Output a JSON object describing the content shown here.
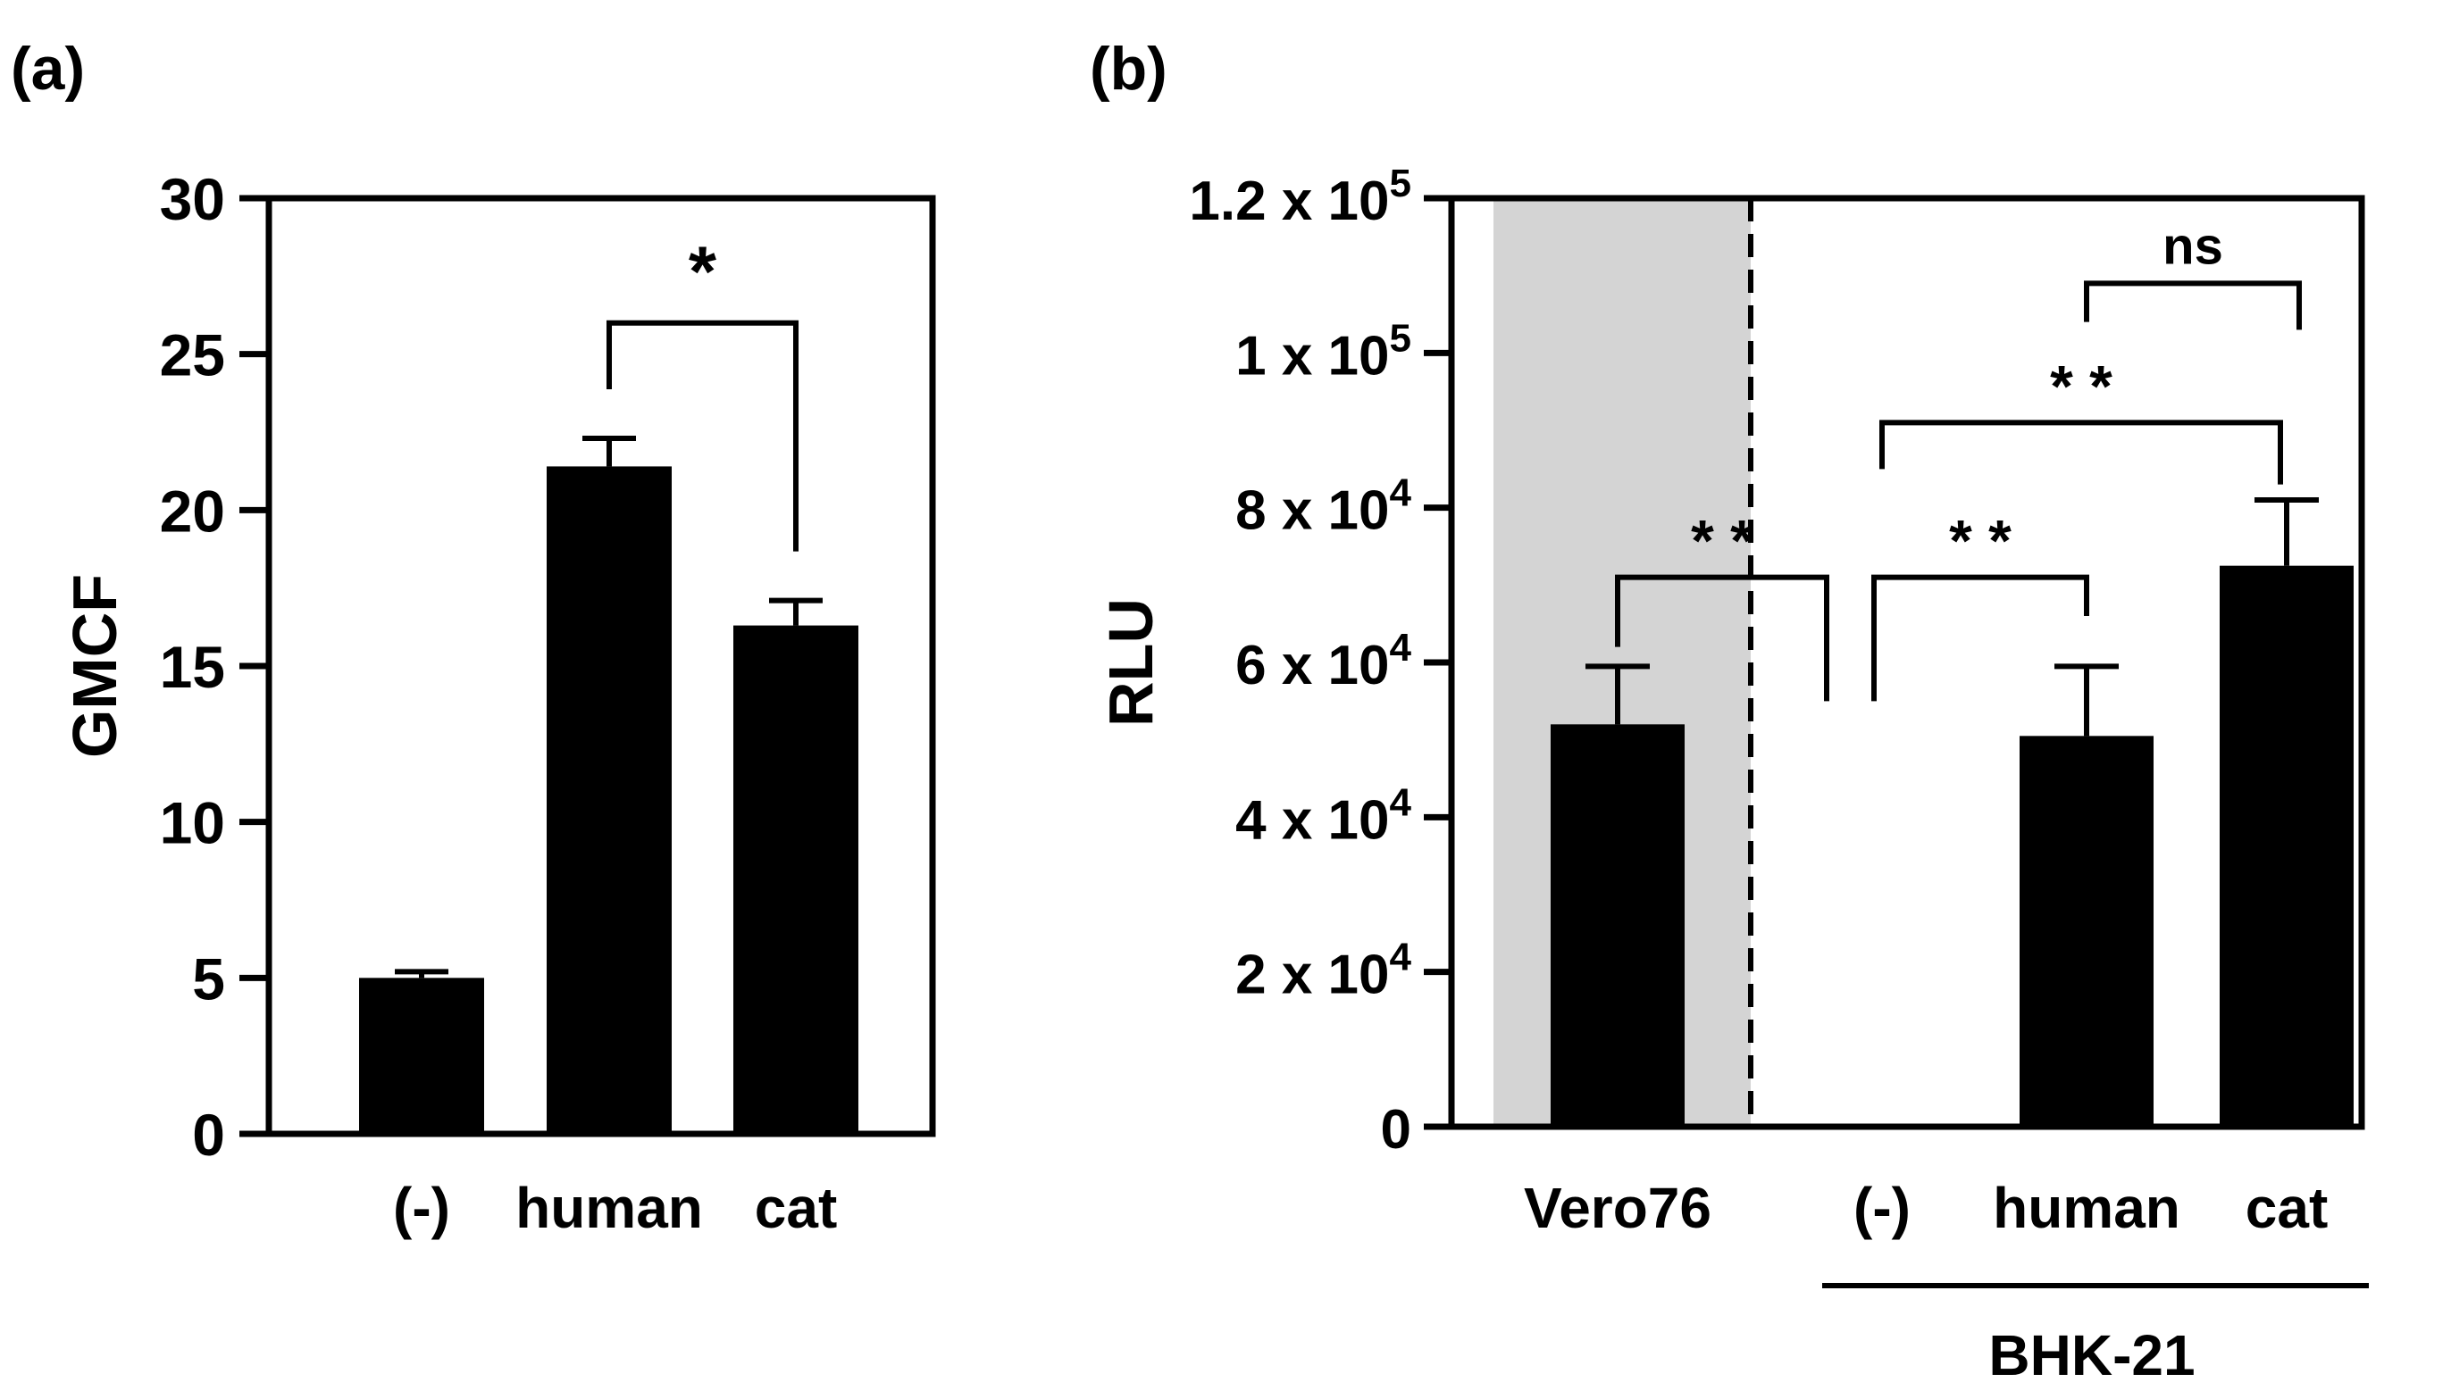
{
  "chart_data": [
    {
      "panel": "(a)",
      "type": "bar",
      "ylabel": "GMCF",
      "ylim": [
        0,
        30
      ],
      "yticks": [
        0,
        5,
        10,
        15,
        20,
        25,
        30
      ],
      "categories": [
        "(-)",
        "human",
        "cat"
      ],
      "values": [
        5.0,
        21.4,
        16.3
      ],
      "errors": [
        0.2,
        0.9,
        0.8
      ],
      "significance": [
        {
          "from": "human",
          "to": "cat",
          "label": "*"
        }
      ]
    },
    {
      "panel": "(b)",
      "type": "bar",
      "ylabel": "RLU",
      "ylim": [
        0,
        120000
      ],
      "yticks": [
        0,
        20000,
        40000,
        60000,
        80000,
        100000,
        120000
      ],
      "ytick_labels": [
        "0",
        "2 x 10",
        "4 x 10",
        "6 x 10",
        "8 x 10",
        "1 x 10",
        "1.2 x 10"
      ],
      "ytick_exponents": [
        "",
        "4",
        "4",
        "4",
        "4",
        "5",
        "5"
      ],
      "categories": [
        "Vero76",
        "(-)",
        "human",
        "cat"
      ],
      "values": [
        52000,
        0,
        50500,
        72500
      ],
      "errors": [
        7500,
        0,
        9000,
        8500
      ],
      "group_label": "BHK-21",
      "shaded_group": "Vero76",
      "significance": [
        {
          "from": "Vero76",
          "to": "(-)",
          "label": "* *"
        },
        {
          "from": "(-)",
          "to": "human",
          "label": "* *"
        },
        {
          "from": "(-)",
          "to": "cat",
          "label": "* *"
        },
        {
          "from": "human",
          "to": "cat",
          "label": "ns"
        }
      ]
    }
  ]
}
